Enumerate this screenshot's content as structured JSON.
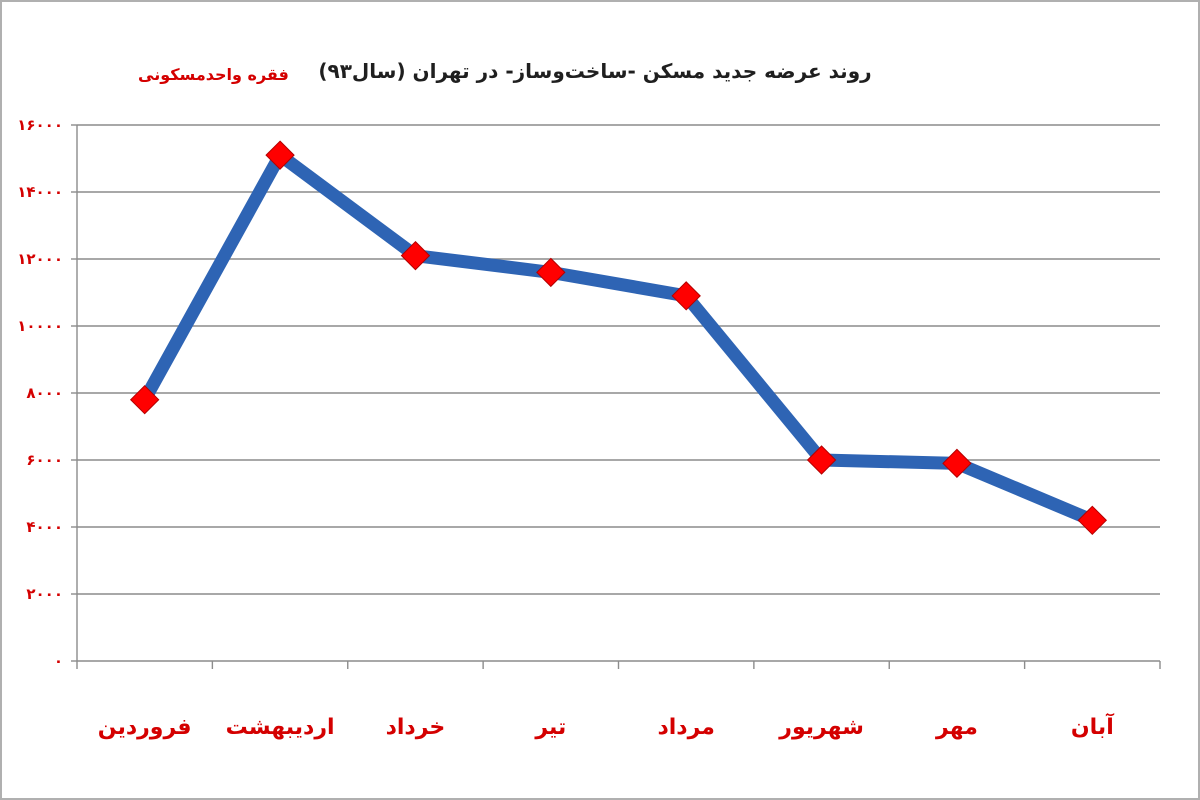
{
  "chart_data": {
    "type": "line",
    "title": "روند عرضه جدید مسکن -ساخت‌وساز- در تهران (سال۹۳)",
    "ylabel": "فقره واحدمسکونی",
    "xlabel": "",
    "categories": [
      "فروردین",
      "اردیبهشت",
      "خرداد",
      "تیر",
      "مرداد",
      "شهریور",
      "مهر",
      "آبان"
    ],
    "series": [
      {
        "values": [
          7800,
          15100,
          12100,
          11600,
          10900,
          6000,
          5900,
          4200
        ]
      }
    ],
    "ylim": [
      0,
      16000
    ],
    "yticks": [
      0,
      2000,
      4000,
      6000,
      8000,
      10000,
      12000,
      14000,
      16000
    ],
    "ytick_labels": [
      "۰",
      "۲۰۰۰",
      "۴۰۰۰",
      "۶۰۰۰",
      "۸۰۰۰",
      "۱۰۰۰۰",
      "۱۲۰۰۰",
      "۱۴۰۰۰",
      "۱۶۰۰۰"
    ],
    "grid": true,
    "legend": "none",
    "colors": {
      "line": "#2e64b4",
      "marker": "#ff0000",
      "labels": "#d40000",
      "grid": "#8c8c8c"
    }
  }
}
